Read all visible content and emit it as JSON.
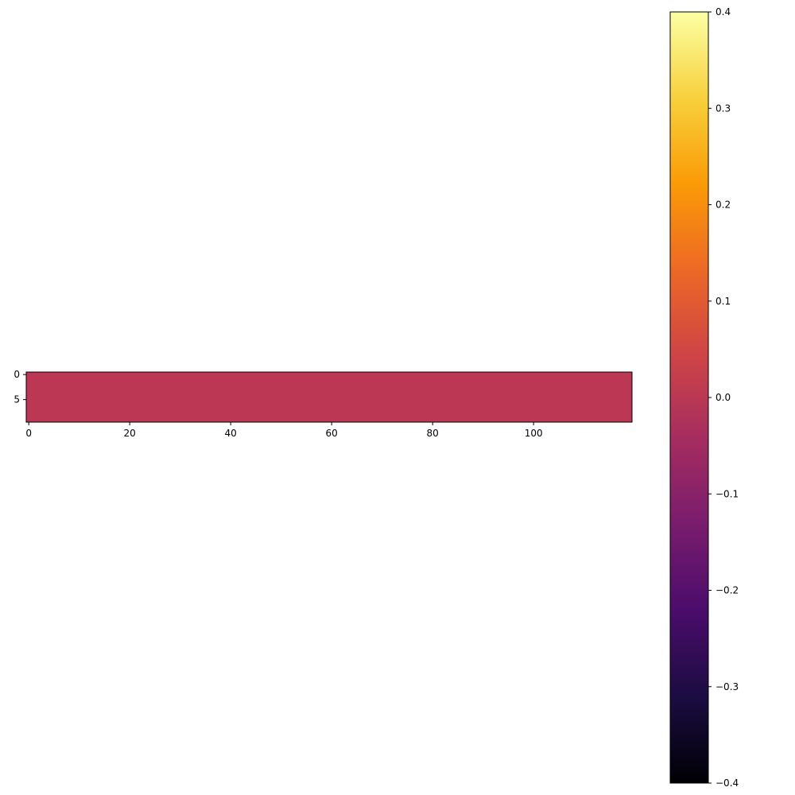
{
  "chart_data": {
    "type": "heatmap",
    "title": "",
    "xlabel": "",
    "ylabel": "",
    "rows": 10,
    "cols": 120,
    "x_ticks": [
      0,
      20,
      40,
      60,
      80,
      100
    ],
    "x_tick_labels": [
      "0",
      "20",
      "40",
      "60",
      "80",
      "100"
    ],
    "y_ticks": [
      0,
      5
    ],
    "y_tick_labels": [
      "0",
      "5"
    ],
    "xlim": [
      -0.5,
      119.5
    ],
    "ylim": [
      9.5,
      -0.5
    ],
    "values_description": "all cells approximately 0.0",
    "approx_value": 0.0,
    "colormap": "inferno",
    "colorbar": {
      "vmin": -0.4,
      "vmax": 0.4,
      "ticks": [
        0.4,
        0.3,
        0.2,
        0.1,
        0.0,
        -0.1,
        -0.2,
        -0.3,
        -0.4
      ],
      "tick_labels": [
        "0.4",
        "0.3",
        "0.2",
        "0.1",
        "0.0",
        "−0.1",
        "−0.2",
        "−0.3",
        "−0.4"
      ]
    },
    "grid": false,
    "legend": "none"
  },
  "colors": {
    "cell_color": "#bc3754",
    "inferno_stops": [
      "#000004",
      "#1b0c41",
      "#4a0c6b",
      "#781c6d",
      "#a52c60",
      "#cf4446",
      "#ed6925",
      "#fb9b06",
      "#f7d13d",
      "#fcffa4"
    ]
  }
}
